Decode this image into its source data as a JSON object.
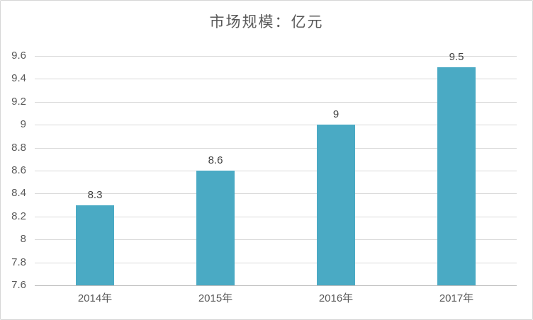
{
  "title": "市场规模：亿元",
  "colors": {
    "bar": "#4AAAC4",
    "grid": "#D9D9D9",
    "baseline": "#BFBFBF",
    "axis_text": "#595959",
    "data_label_text": "#404040",
    "title_text": "#595959",
    "border": "#D6D6D6",
    "background": "#FFFFFF"
  },
  "chart_data": {
    "type": "bar",
    "title": "市场规模：亿元",
    "categories": [
      "2014年",
      "2015年",
      "2016年",
      "2017年"
    ],
    "values": [
      8.3,
      8.6,
      9,
      9.5
    ],
    "data_labels": [
      "8.3",
      "8.6",
      "9",
      "9.5"
    ],
    "y_ticks": [
      "9.6",
      "9.4",
      "9.2",
      "9",
      "8.8",
      "8.6",
      "8.4",
      "8.2",
      "8",
      "7.8",
      "7.6"
    ],
    "ylim": [
      7.6,
      9.6
    ],
    "tick_step": 0.2,
    "xlabel": "",
    "ylabel": "",
    "grid": true,
    "legend": "none",
    "data_labels_position": "above-bar"
  }
}
